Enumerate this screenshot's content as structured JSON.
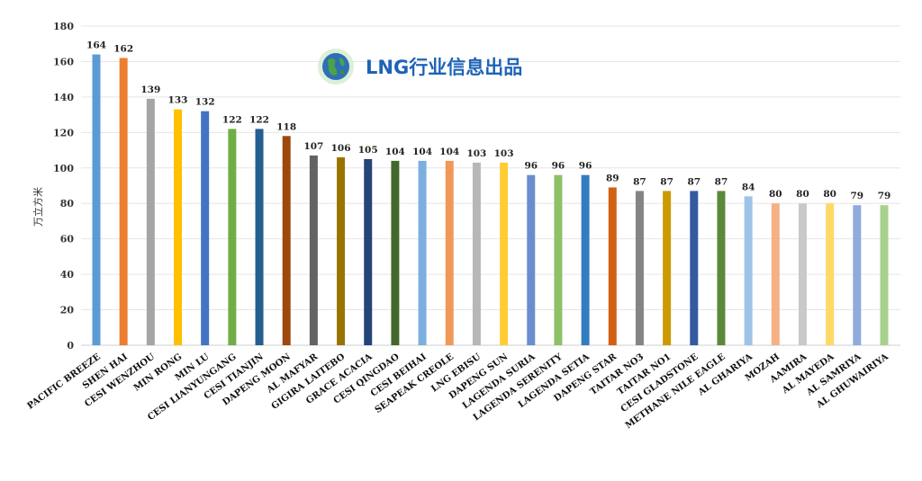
{
  "watermark": {
    "text": "LNG行业信息出品",
    "icon": "globe-icon",
    "color": "#1e63b6"
  },
  "chart_data": {
    "type": "bar",
    "title": "",
    "xlabel": "",
    "ylabel": "万立方米",
    "ylim": [
      0,
      180
    ],
    "yticks": [
      0,
      20,
      40,
      60,
      80,
      100,
      120,
      140,
      160,
      180
    ],
    "grid": true,
    "categories": [
      "PACIFIC BREEZE",
      "SHEN HAI",
      "CESI WENZHOU",
      "MIN RONG",
      "MIN LU",
      "CESI LIANYUNGANG",
      "CESI TIANJIN",
      "DAPENG MOON",
      "AL MAFYAR",
      "GIGIRA LAITEBO",
      "GRACE ACACIA",
      "CESI QINGDAO",
      "CESI BEIHAI",
      "SEAPEAK CREOLE",
      "LNG EBISU",
      "DAPENG SUN",
      "LAGENDA SURIA",
      "LAGENDA SERENITY",
      "LAGENDA SETIA",
      "DAPENG STAR",
      "TAITAR NO3",
      "TAITAR NO1",
      "CESI GLADSTONE",
      "METHANE NILE EAGLE",
      "AL GHARIYA",
      "MOZAH",
      "AAMIRA",
      "AL MAYEDA",
      "AL SAMRIYA",
      "AL GHUWAIRIYA"
    ],
    "values": [
      164,
      162,
      139,
      133,
      132,
      122,
      122,
      118,
      107,
      106,
      105,
      104,
      104,
      104,
      103,
      103,
      96,
      96,
      96,
      89,
      87,
      87,
      87,
      87,
      84,
      80,
      80,
      80,
      79,
      79
    ],
    "colors": [
      "#5b9bd5",
      "#ed7d31",
      "#a5a5a5",
      "#ffc000",
      "#4472c4",
      "#70ad47",
      "#255e91",
      "#9e480e",
      "#636363",
      "#997300",
      "#264478",
      "#43682b",
      "#7cafdd",
      "#f1975a",
      "#b7b7b7",
      "#ffcd33",
      "#698ed0",
      "#8cc168",
      "#327dc2",
      "#d26012",
      "#848484",
      "#cc9a00",
      "#335aa1",
      "#5a8a39",
      "#9dc3e6",
      "#f4b183",
      "#c9c9c9",
      "#ffd966",
      "#8faadc",
      "#a9d18e"
    ]
  }
}
